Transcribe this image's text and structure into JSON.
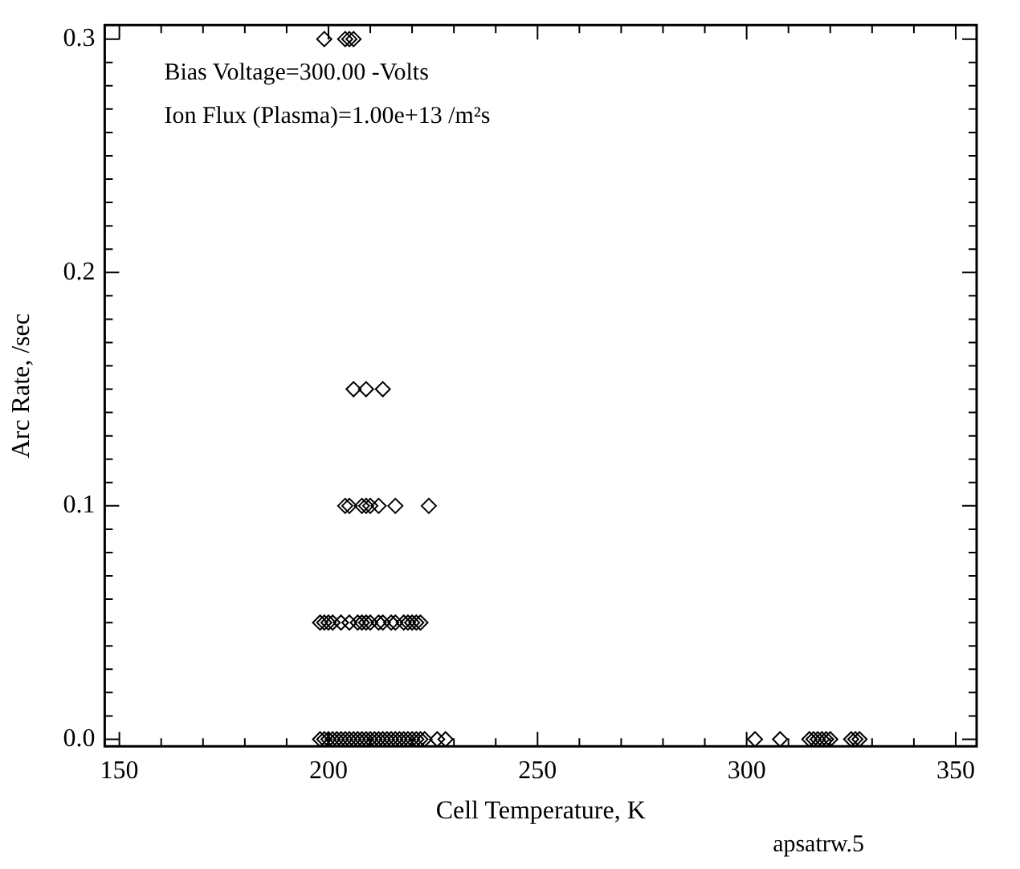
{
  "chart_data": {
    "type": "scatter",
    "xlabel": "Cell Temperature, K",
    "ylabel": "Arc Rate, /sec",
    "annotations": [
      "Bias Voltage=300.00 -Volts",
      "Ion Flux (Plasma)=1.00e+13 /m²s",
      "apsatrw.5"
    ],
    "series": [
      {
        "color": "#000000",
        "x": [
          199,
          204,
          205,
          206,
          206,
          209,
          213,
          204,
          205,
          208,
          209,
          210,
          212,
          216,
          224,
          198,
          199,
          200,
          201,
          203,
          205,
          207,
          208,
          209,
          210,
          212,
          213,
          215,
          216,
          218,
          219,
          220,
          221,
          222,
          198,
          199,
          200,
          201,
          202,
          203,
          204,
          205,
          206,
          207,
          208,
          209,
          210,
          211,
          212,
          213,
          214,
          215,
          216,
          217,
          218,
          219,
          220,
          221,
          222,
          223,
          226,
          228,
          302,
          308,
          315,
          316,
          317,
          318,
          319,
          320,
          325,
          326,
          327
        ],
        "values": [
          0.3,
          0.3,
          0.3,
          0.3,
          0.15,
          0.15,
          0.15,
          0.1,
          0.1,
          0.1,
          0.1,
          0.1,
          0.1,
          0.1,
          0.1,
          0.05,
          0.05,
          0.05,
          0.05,
          0.05,
          0.05,
          0.05,
          0.05,
          0.05,
          0.05,
          0.05,
          0.05,
          0.05,
          0.05,
          0.05,
          0.05,
          0.05,
          0.05,
          0.05,
          0,
          0,
          0,
          0,
          0,
          0,
          0,
          0,
          0,
          0,
          0,
          0,
          0,
          0,
          0,
          0,
          0,
          0,
          0,
          0,
          0,
          0,
          0,
          0,
          0,
          0,
          0,
          0,
          0,
          0,
          0,
          0,
          0,
          0,
          0,
          0,
          0,
          0,
          0
        ]
      }
    ],
    "marker": "diamond",
    "grid": false,
    "legend": false,
    "xlim": [
      146.5,
      355
    ],
    "ylim": [
      -0.003,
      0.306
    ],
    "xticks": [
      150,
      {
        "value": 160,
        "label": null
      },
      {
        "value": 170,
        "label": null
      },
      {
        "value": 180,
        "label": null
      },
      {
        "value": 190,
        "label": null
      },
      200,
      {
        "value": 210,
        "label": null
      },
      {
        "value": 220,
        "label": null
      },
      {
        "value": 230,
        "label": null
      },
      {
        "value": 240,
        "label": null
      },
      250,
      {
        "value": 260,
        "label": null
      },
      {
        "value": 270,
        "label": null
      },
      {
        "value": 280,
        "label": null
      },
      {
        "value": 290,
        "label": null
      },
      300,
      {
        "value": 310,
        "label": null
      },
      {
        "value": 320,
        "label": null
      },
      {
        "value": 330,
        "label": null
      },
      {
        "value": 340,
        "label": null
      },
      350
    ],
    "yticks": [
      {
        "value": 0,
        "label": "0.0"
      },
      {
        "value": 0.01,
        "label": null
      },
      {
        "value": 0.02,
        "label": null
      },
      {
        "value": 0.03,
        "label": null
      },
      {
        "value": 0.04,
        "label": null
      },
      {
        "value": 0.05,
        "label": null
      },
      {
        "value": 0.06,
        "label": null
      },
      {
        "value": 0.07,
        "label": null
      },
      {
        "value": 0.08,
        "label": null
      },
      {
        "value": 0.09,
        "label": null
      },
      0.1,
      {
        "value": 0.11,
        "label": null
      },
      {
        "value": 0.12,
        "label": null
      },
      {
        "value": 0.13,
        "label": null
      },
      {
        "value": 0.14,
        "label": null
      },
      {
        "value": 0.15,
        "label": null
      },
      {
        "value": 0.16,
        "label": null
      },
      {
        "value": 0.17,
        "label": null
      },
      {
        "value": 0.18,
        "label": null
      },
      {
        "value": 0.19,
        "label": null
      },
      0.2,
      {
        "value": 0.21,
        "label": null
      },
      {
        "value": 0.22,
        "label": null
      },
      {
        "value": 0.23,
        "label": null
      },
      {
        "value": 0.24,
        "label": null
      },
      {
        "value": 0.25,
        "label": null
      },
      {
        "value": 0.26,
        "label": null
      },
      {
        "value": 0.27,
        "label": null
      },
      {
        "value": 0.28,
        "label": null
      },
      {
        "value": 0.29,
        "label": null
      },
      0.3
    ]
  }
}
